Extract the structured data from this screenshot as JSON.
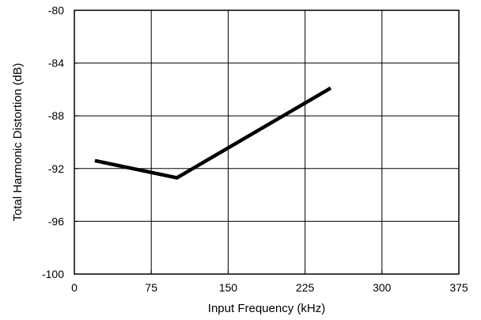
{
  "chart_data": {
    "type": "line",
    "title": "",
    "xlabel": "Input Frequency (kHz)",
    "ylabel": "Total Harmonic Distortion (dB)",
    "xlim": [
      0,
      375
    ],
    "ylim": [
      -100,
      -80
    ],
    "x_ticks": [
      0,
      75,
      150,
      225,
      300,
      375
    ],
    "y_ticks": [
      -80,
      -84,
      -88,
      -92,
      -96,
      -100
    ],
    "grid": true,
    "series": [
      {
        "x": [
          20,
          100,
          250
        ],
        "y": [
          -91.4,
          -92.7,
          -85.9
        ],
        "color": "#000000"
      }
    ]
  }
}
